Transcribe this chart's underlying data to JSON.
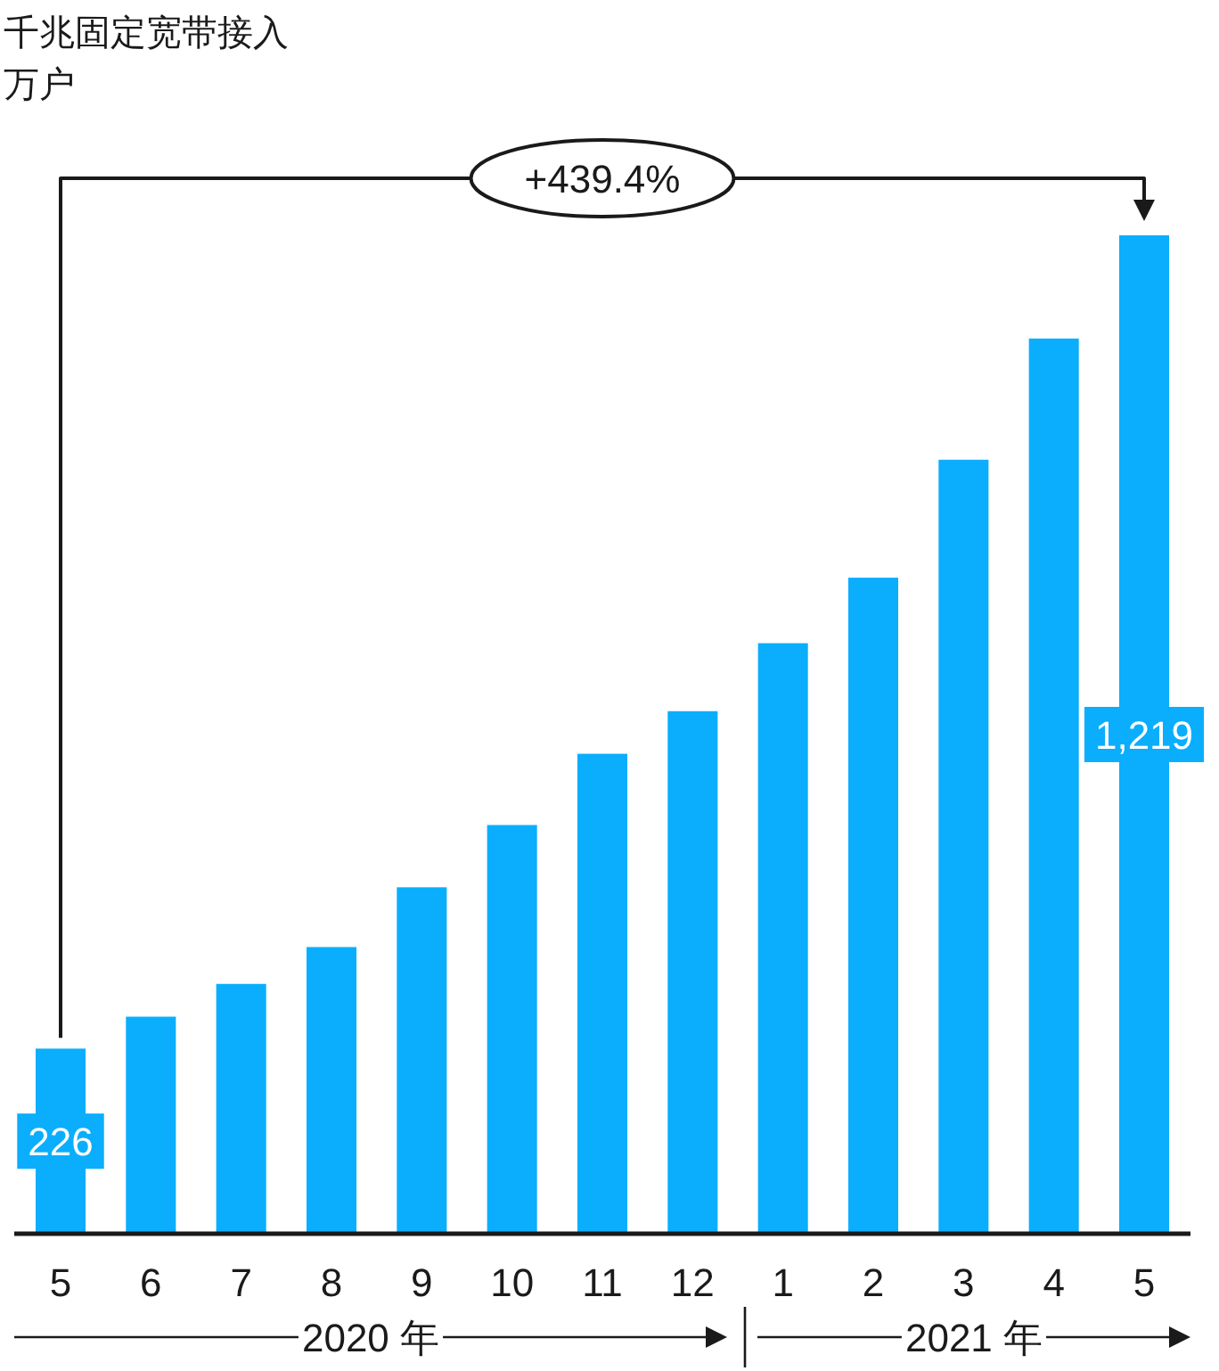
{
  "chart_data": {
    "type": "bar",
    "title": "千兆固定宽带接入",
    "ylabel": "万户",
    "categories": [
      "5",
      "6",
      "7",
      "8",
      "9",
      "10",
      "11",
      "12",
      "1",
      "2",
      "3",
      "4",
      "5"
    ],
    "values": [
      226,
      265,
      305,
      350,
      423,
      499,
      586,
      638,
      721,
      801,
      945,
      1093,
      1219
    ],
    "color": "#0aaefd",
    "value_labels": [
      "226",
      null,
      null,
      null,
      null,
      null,
      null,
      null,
      null,
      null,
      null,
      null,
      "1,219"
    ],
    "annotations": [
      "+439.4%",
      "2020 年",
      "2021 年"
    ]
  }
}
